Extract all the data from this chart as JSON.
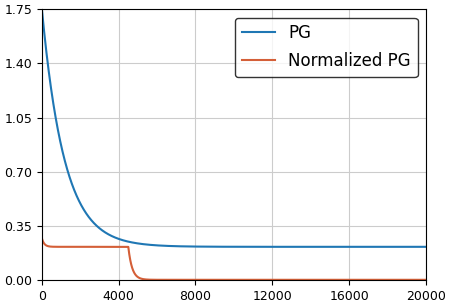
{
  "pg_color": "#1f77b4",
  "npg_color": "#d45f38",
  "legend_labels": [
    "PG",
    "Normalized PG"
  ],
  "xlim": [
    0,
    20000
  ],
  "ylim": [
    0.0,
    1.75
  ],
  "xticks": [
    0,
    4000,
    8000,
    12000,
    16000,
    20000
  ],
  "yticks": [
    0.0,
    0.35,
    0.7,
    1.05,
    1.4,
    1.75
  ],
  "grid_color": "#cccccc",
  "bg_color": "#ffffff",
  "pg_start": 1.75,
  "pg_end": 0.215,
  "pg_decay": 0.00085,
  "npg_init": 0.27,
  "npg_flat": 0.215,
  "npg_flat_decay": 0.0001,
  "npg_drop_x": 4500,
  "npg_end": 0.002,
  "npg_drop_decay": 0.005,
  "linewidth": 1.5,
  "legend_fontsize": 12,
  "tick_fontsize": 9
}
